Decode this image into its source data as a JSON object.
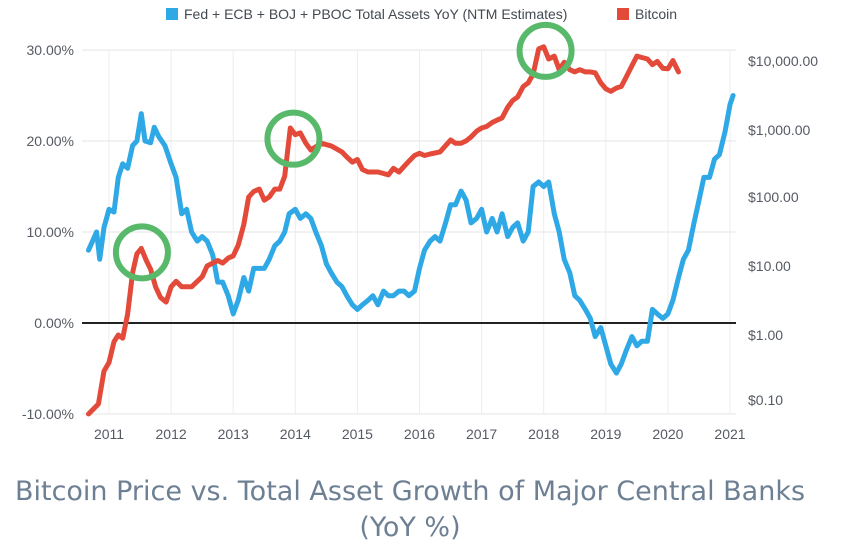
{
  "chart_data": {
    "type": "line",
    "title": "Bitcoin Price vs. Total Asset Growth of Major Central Banks (YoY %)",
    "legend_position": "top-center",
    "grid": true,
    "x_ticks": [
      "2011",
      "2012",
      "2013",
      "2014",
      "2015",
      "2016",
      "2017",
      "2018",
      "2019",
      "2020",
      "2021"
    ],
    "left_axis": {
      "ticks": [
        "30.00%",
        "20.00%",
        "10.00%",
        "0.00%",
        "-10.00%"
      ],
      "range": [
        -10,
        30
      ]
    },
    "right_axis": {
      "ticks": [
        "$10,000.00",
        "$1,000.00",
        "$100.00",
        "$10.00",
        "$1.00",
        "$0.10"
      ],
      "scale": "log"
    },
    "series": [
      {
        "name": "Fed + ECB + BOJ + PBOC Total Assets YoY (NTM Estimates)",
        "color": "#2fa8e6",
        "axis": "left",
        "points": [
          [
            2010.67,
            8.0
          ],
          [
            2010.8,
            10.0
          ],
          [
            2010.85,
            7.0
          ],
          [
            2010.92,
            10.5
          ],
          [
            2011.0,
            12.5
          ],
          [
            2011.08,
            12.2
          ],
          [
            2011.15,
            16.0
          ],
          [
            2011.22,
            17.5
          ],
          [
            2011.3,
            17.0
          ],
          [
            2011.38,
            19.5
          ],
          [
            2011.45,
            20.0
          ],
          [
            2011.52,
            23.0
          ],
          [
            2011.58,
            20.0
          ],
          [
            2011.67,
            19.8
          ],
          [
            2011.73,
            21.5
          ],
          [
            2011.8,
            20.5
          ],
          [
            2011.9,
            19.5
          ],
          [
            2012.0,
            17.5
          ],
          [
            2012.08,
            16.0
          ],
          [
            2012.17,
            12.0
          ],
          [
            2012.25,
            12.5
          ],
          [
            2012.33,
            10.0
          ],
          [
            2012.42,
            9.0
          ],
          [
            2012.5,
            9.5
          ],
          [
            2012.58,
            9.0
          ],
          [
            2012.67,
            7.5
          ],
          [
            2012.75,
            4.5
          ],
          [
            2012.83,
            4.5
          ],
          [
            2012.92,
            3.0
          ],
          [
            2013.0,
            1.0
          ],
          [
            2013.08,
            2.5
          ],
          [
            2013.17,
            5.0
          ],
          [
            2013.25,
            3.5
          ],
          [
            2013.33,
            6.0
          ],
          [
            2013.42,
            6.0
          ],
          [
            2013.5,
            6.0
          ],
          [
            2013.58,
            7.0
          ],
          [
            2013.67,
            8.5
          ],
          [
            2013.75,
            9.0
          ],
          [
            2013.83,
            10.0
          ],
          [
            2013.9,
            12.0
          ],
          [
            2014.0,
            12.5
          ],
          [
            2014.08,
            11.5
          ],
          [
            2014.17,
            12.0
          ],
          [
            2014.25,
            11.5
          ],
          [
            2014.33,
            10.0
          ],
          [
            2014.42,
            8.5
          ],
          [
            2014.5,
            6.5
          ],
          [
            2014.58,
            5.5
          ],
          [
            2014.67,
            4.5
          ],
          [
            2014.75,
            4.0
          ],
          [
            2014.83,
            3.0
          ],
          [
            2014.92,
            2.0
          ],
          [
            2015.0,
            1.5
          ],
          [
            2015.08,
            2.0
          ],
          [
            2015.17,
            2.5
          ],
          [
            2015.25,
            3.0
          ],
          [
            2015.33,
            2.0
          ],
          [
            2015.42,
            3.5
          ],
          [
            2015.5,
            3.0
          ],
          [
            2015.58,
            3.0
          ],
          [
            2015.67,
            3.5
          ],
          [
            2015.75,
            3.5
          ],
          [
            2015.83,
            3.0
          ],
          [
            2015.92,
            3.5
          ],
          [
            2016.0,
            6.0
          ],
          [
            2016.08,
            8.0
          ],
          [
            2016.17,
            9.0
          ],
          [
            2016.25,
            9.5
          ],
          [
            2016.33,
            9.0
          ],
          [
            2016.42,
            11.0
          ],
          [
            2016.5,
            13.0
          ],
          [
            2016.58,
            13.0
          ],
          [
            2016.67,
            14.5
          ],
          [
            2016.75,
            13.5
          ],
          [
            2016.83,
            11.0
          ],
          [
            2016.92,
            11.5
          ],
          [
            2017.0,
            12.5
          ],
          [
            2017.08,
            10.0
          ],
          [
            2017.17,
            11.5
          ],
          [
            2017.25,
            10.0
          ],
          [
            2017.33,
            12.0
          ],
          [
            2017.42,
            9.5
          ],
          [
            2017.5,
            10.5
          ],
          [
            2017.58,
            11.0
          ],
          [
            2017.67,
            9.0
          ],
          [
            2017.75,
            10.0
          ],
          [
            2017.83,
            15.0
          ],
          [
            2017.92,
            15.5
          ],
          [
            2018.0,
            15.0
          ],
          [
            2018.08,
            15.5
          ],
          [
            2018.17,
            12.0
          ],
          [
            2018.25,
            10.0
          ],
          [
            2018.33,
            7.0
          ],
          [
            2018.42,
            5.5
          ],
          [
            2018.5,
            3.0
          ],
          [
            2018.58,
            2.5
          ],
          [
            2018.67,
            1.5
          ],
          [
            2018.75,
            0.5
          ],
          [
            2018.83,
            -1.5
          ],
          [
            2018.92,
            -0.5
          ],
          [
            2019.0,
            -2.5
          ],
          [
            2019.08,
            -4.5
          ],
          [
            2019.17,
            -5.5
          ],
          [
            2019.25,
            -4.5
          ],
          [
            2019.33,
            -3.0
          ],
          [
            2019.42,
            -1.5
          ],
          [
            2019.5,
            -2.5
          ],
          [
            2019.58,
            -2.0
          ],
          [
            2019.67,
            -2.0
          ],
          [
            2019.75,
            1.5
          ],
          [
            2019.83,
            1.0
          ],
          [
            2019.92,
            0.5
          ],
          [
            2020.0,
            1.0
          ],
          [
            2020.08,
            2.5
          ],
          [
            2020.17,
            5.0
          ],
          [
            2020.25,
            7.0
          ],
          [
            2020.33,
            8.0
          ],
          [
            2020.42,
            11.0
          ],
          [
            2020.5,
            13.5
          ],
          [
            2020.58,
            16.0
          ],
          [
            2020.67,
            16.0
          ],
          [
            2020.75,
            18.0
          ],
          [
            2020.83,
            18.5
          ],
          [
            2020.92,
            21.0
          ],
          [
            2021.0,
            24.0
          ],
          [
            2021.05,
            25.0
          ]
        ]
      },
      {
        "name": "Bitcoin",
        "color": "#e34a3a",
        "axis": "right",
        "points": [
          [
            2010.67,
            0.07
          ],
          [
            2010.83,
            0.1
          ],
          [
            2010.92,
            0.3
          ],
          [
            2011.0,
            0.4
          ],
          [
            2011.08,
            0.8
          ],
          [
            2011.15,
            1.0
          ],
          [
            2011.22,
            0.9
          ],
          [
            2011.3,
            2.0
          ],
          [
            2011.38,
            8.0
          ],
          [
            2011.45,
            15.0
          ],
          [
            2011.52,
            18.0
          ],
          [
            2011.6,
            12.0
          ],
          [
            2011.67,
            9.0
          ],
          [
            2011.75,
            5.0
          ],
          [
            2011.83,
            3.5
          ],
          [
            2011.92,
            3.0
          ],
          [
            2012.0,
            5.0
          ],
          [
            2012.08,
            6.0
          ],
          [
            2012.17,
            5.0
          ],
          [
            2012.33,
            5.0
          ],
          [
            2012.5,
            7.0
          ],
          [
            2012.58,
            10.0
          ],
          [
            2012.67,
            11.0
          ],
          [
            2012.75,
            12.0
          ],
          [
            2012.83,
            11.0
          ],
          [
            2012.92,
            13.0
          ],
          [
            2013.0,
            14.0
          ],
          [
            2013.08,
            20.0
          ],
          [
            2013.17,
            40.0
          ],
          [
            2013.25,
            100.0
          ],
          [
            2013.33,
            120.0
          ],
          [
            2013.42,
            130.0
          ],
          [
            2013.5,
            90.0
          ],
          [
            2013.58,
            100.0
          ],
          [
            2013.67,
            130.0
          ],
          [
            2013.75,
            130.0
          ],
          [
            2013.83,
            200.0
          ],
          [
            2013.92,
            1000.0
          ],
          [
            2014.0,
            800.0
          ],
          [
            2014.08,
            850.0
          ],
          [
            2014.17,
            600.0
          ],
          [
            2014.25,
            480.0
          ],
          [
            2014.42,
            600.0
          ],
          [
            2014.58,
            550.0
          ],
          [
            2014.75,
            450.0
          ],
          [
            2014.83,
            380.0
          ],
          [
            2014.92,
            320.0
          ],
          [
            2015.0,
            350.0
          ],
          [
            2015.08,
            250.0
          ],
          [
            2015.17,
            230.0
          ],
          [
            2015.33,
            230.0
          ],
          [
            2015.5,
            210.0
          ],
          [
            2015.58,
            260.0
          ],
          [
            2015.67,
            230.0
          ],
          [
            2015.83,
            330.0
          ],
          [
            2015.92,
            400.0
          ],
          [
            2016.0,
            430.0
          ],
          [
            2016.08,
            400.0
          ],
          [
            2016.17,
            420.0
          ],
          [
            2016.33,
            450.0
          ],
          [
            2016.5,
            670.0
          ],
          [
            2016.58,
            600.0
          ],
          [
            2016.67,
            600.0
          ],
          [
            2016.75,
            650.0
          ],
          [
            2016.83,
            740.0
          ],
          [
            2016.92,
            900.0
          ],
          [
            2017.0,
            1000.0
          ],
          [
            2017.08,
            1050.0
          ],
          [
            2017.17,
            1200.0
          ],
          [
            2017.25,
            1300.0
          ],
          [
            2017.33,
            1400.0
          ],
          [
            2017.42,
            2000.0
          ],
          [
            2017.5,
            2500.0
          ],
          [
            2017.58,
            2800.0
          ],
          [
            2017.67,
            4000.0
          ],
          [
            2017.75,
            4500.0
          ],
          [
            2017.83,
            6000.0
          ],
          [
            2017.92,
            14000.0
          ],
          [
            2018.0,
            15000.0
          ],
          [
            2018.08,
            10000.0
          ],
          [
            2018.17,
            11000.0
          ],
          [
            2018.25,
            7000.0
          ],
          [
            2018.33,
            9000.0
          ],
          [
            2018.42,
            7000.0
          ],
          [
            2018.5,
            6500.0
          ],
          [
            2018.58,
            7000.0
          ],
          [
            2018.67,
            6500.0
          ],
          [
            2018.75,
            6500.0
          ],
          [
            2018.83,
            6300.0
          ],
          [
            2018.92,
            4500.0
          ],
          [
            2019.0,
            3700.0
          ],
          [
            2019.08,
            3400.0
          ],
          [
            2019.17,
            3800.0
          ],
          [
            2019.25,
            4000.0
          ],
          [
            2019.33,
            5500.0
          ],
          [
            2019.42,
            8000.0
          ],
          [
            2019.5,
            11000.0
          ],
          [
            2019.58,
            10500.0
          ],
          [
            2019.67,
            10000.0
          ],
          [
            2019.75,
            8300.0
          ],
          [
            2019.83,
            9200.0
          ],
          [
            2019.92,
            7300.0
          ],
          [
            2020.0,
            7200.0
          ],
          [
            2020.08,
            9500.0
          ],
          [
            2020.17,
            6500.0
          ]
        ]
      }
    ],
    "annotations": [
      {
        "type": "circle",
        "x": 2011.53,
        "series": "Bitcoin"
      },
      {
        "type": "circle",
        "x": 2013.97,
        "series": "Bitcoin"
      },
      {
        "type": "circle",
        "x": 2018.03,
        "series": "Bitcoin"
      }
    ]
  }
}
